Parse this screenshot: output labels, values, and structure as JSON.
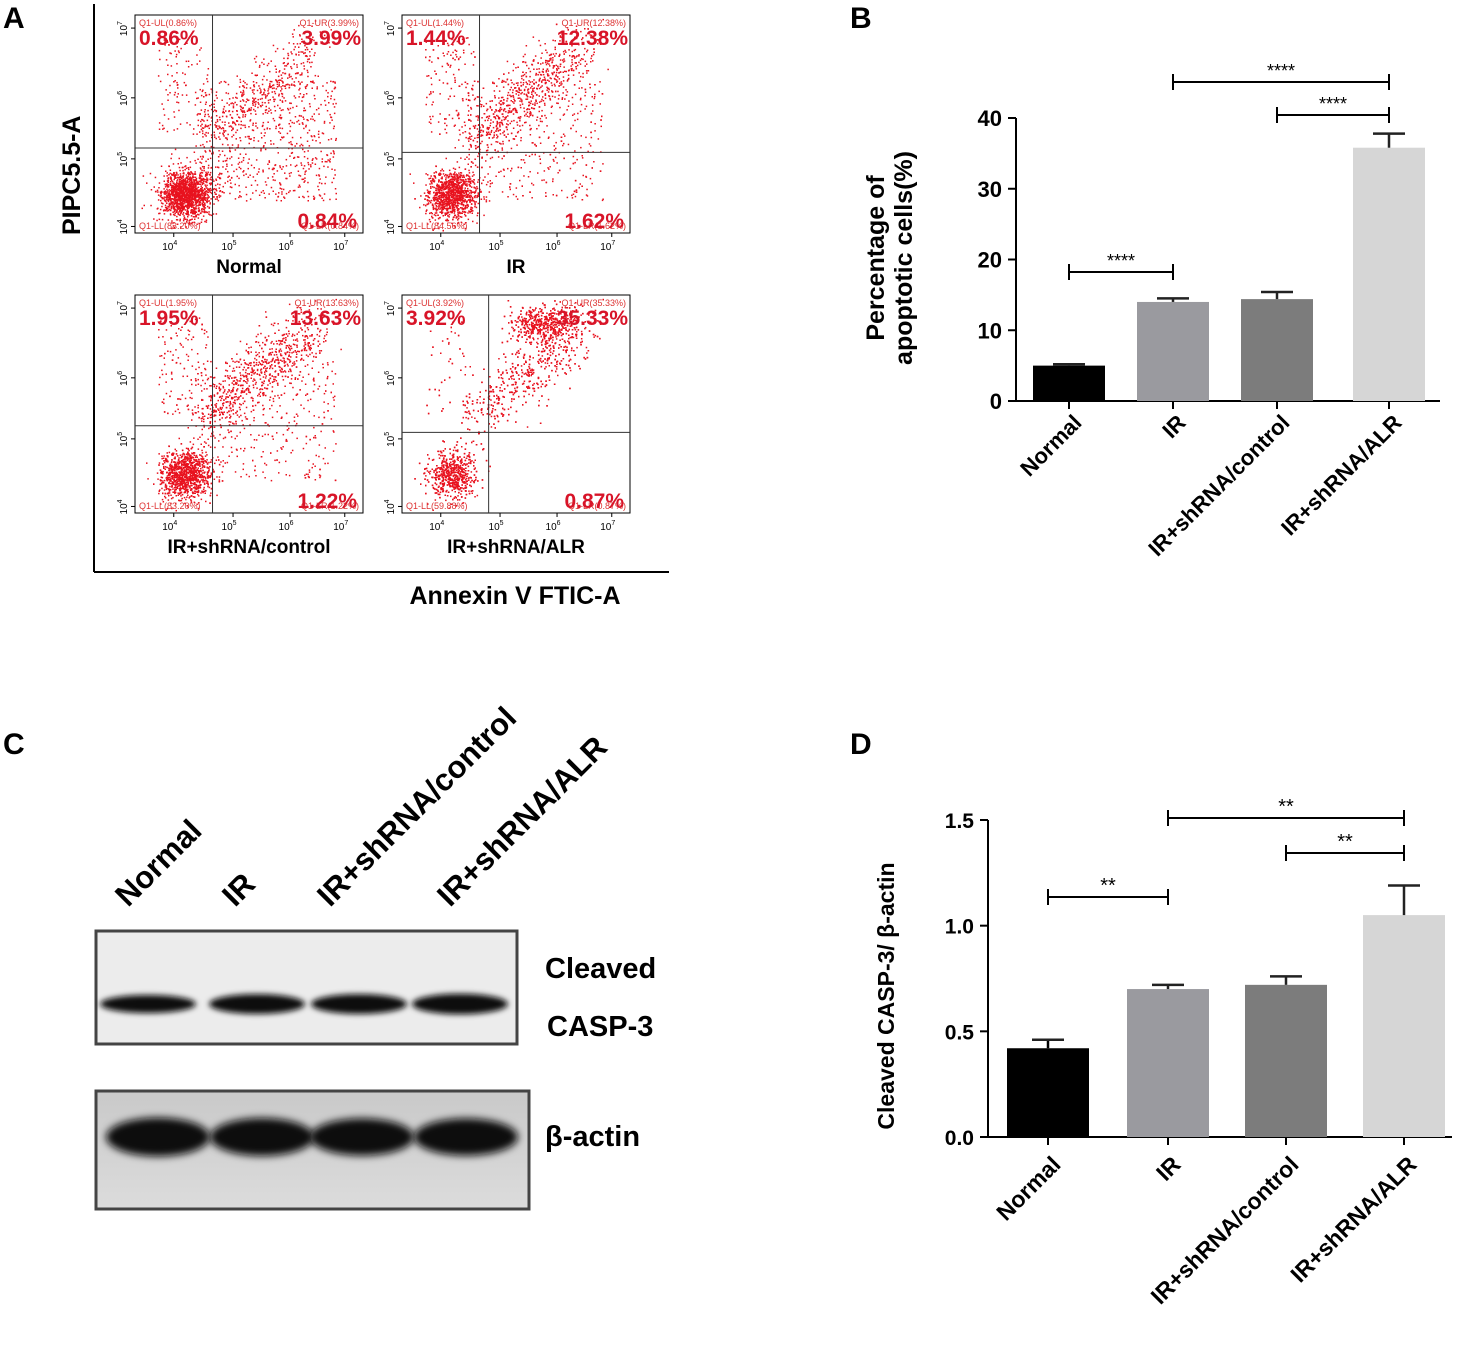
{
  "panel_letters": {
    "a": "A",
    "b": "B",
    "c": "C",
    "d": "D"
  },
  "colors": {
    "dot_red": "#e8121e",
    "pct_red": "#d81428",
    "normal": "#000000",
    "ir": "#9a9a9f",
    "control": "#7c7c7c",
    "alr": "#d6d6d6"
  },
  "flow": {
    "y_axis_label": "PIPC5.5-A",
    "x_axis_label": "Annexin V FTIC-A",
    "tick_base": "10",
    "x_tick_exps": [
      "4",
      "5",
      "6",
      "7"
    ],
    "y_tick_exps": [
      "7",
      "6",
      "5",
      "4"
    ],
    "plots": [
      {
        "label": "Normal",
        "ul": "0.86%",
        "ur": "3.99%",
        "lr": "0.84%",
        "ll_gate": "Q1-LL(83.20%)",
        "ul_gate": "Q1-UL(0.86%)",
        "ur_gate": "Q1-UR(3.99%)",
        "lr_gate": "Q1-LR(0.84%)"
      },
      {
        "label": "IR",
        "ul": "1.44%",
        "ur": "12.38%",
        "lr": "1.62%",
        "ll_gate": "Q1-LL(84.56%)",
        "ul_gate": "Q1-UL(1.44%)",
        "ur_gate": "Q1-UR(12.38%)",
        "lr_gate": "Q1-LR(1.62%)"
      },
      {
        "label": "IR+shRNA/control",
        "ul": "1.95%",
        "ur": "13.63%",
        "lr": "1.22%",
        "ll_gate": "Q1-LL(83.20%)",
        "ul_gate": "Q1-UL(1.95%)",
        "ur_gate": "Q1-UR(13.63%)",
        "lr_gate": "Q1-LR(1.22%)"
      },
      {
        "label": "IR+shRNA/ALR",
        "ul": "3.92%",
        "ur": "35.33%",
        "lr": "0.87%",
        "ll_gate": "Q1-LL(59.88%)",
        "ul_gate": "Q1-UL(3.92%)",
        "ur_gate": "Q1-UR(35.33%)",
        "lr_gate": "Q1-LR(0.87%)"
      }
    ]
  },
  "western": {
    "lane_labels": [
      "Normal",
      "IR",
      "IR+shRNA/control",
      "IR+shRNA/ALR"
    ],
    "band1_label_line1": "Cleaved",
    "band1_label_line2": "CASP-3",
    "band2_label": "β-actin",
    "casp3_intensity": [
      0.78,
      0.88,
      0.88,
      0.92
    ],
    "actin_intensity": [
      0.97,
      0.95,
      0.93,
      0.93
    ]
  },
  "chart_data": [
    {
      "type": "bar",
      "panel": "B",
      "categories": [
        "Normal",
        "IR",
        "IR+shRNA/control",
        "IR+shRNA/ALR"
      ],
      "values": [
        5.0,
        14.0,
        14.4,
        35.8
      ],
      "errors": [
        0.2,
        0.5,
        1.0,
        2.0
      ],
      "ylabel": "Percentage of\napoptotic cells(%)",
      "ylim": [
        0,
        40
      ],
      "yticks": [
        0,
        10,
        20,
        30,
        40
      ],
      "significance": [
        {
          "from": 1,
          "to": 3,
          "label": "****"
        },
        {
          "from": 2,
          "to": 3,
          "label": "****"
        },
        {
          "from": 0,
          "to": 1,
          "label": "****"
        }
      ]
    },
    {
      "type": "bar",
      "panel": "D",
      "categories": [
        "Normal",
        "IR",
        "IR+shRNA/control",
        "IR+shRNA/ALR"
      ],
      "values": [
        0.42,
        0.7,
        0.72,
        1.05
      ],
      "errors": [
        0.04,
        0.02,
        0.04,
        0.14
      ],
      "ylabel": "Cleaved CASP-3/ β-actin",
      "ylim": [
        0,
        1.5
      ],
      "yticks": [
        0.0,
        0.5,
        1.0,
        1.5
      ],
      "significance": [
        {
          "from": 1,
          "to": 3,
          "label": "**"
        },
        {
          "from": 2,
          "to": 3,
          "label": "**"
        },
        {
          "from": 0,
          "to": 1,
          "label": "**"
        }
      ]
    }
  ]
}
